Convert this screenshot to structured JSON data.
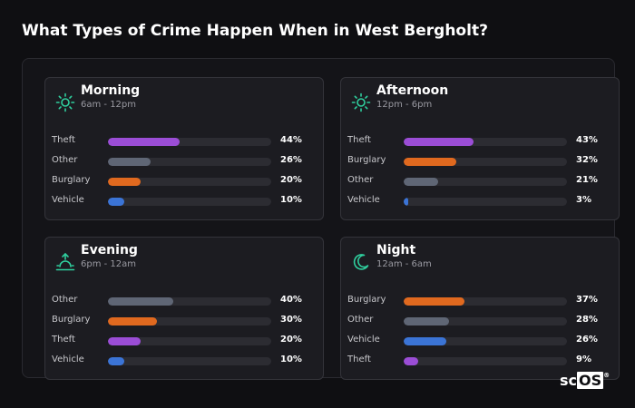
{
  "title": "What Types of Crime Happen When in West Bergholt?",
  "logo": {
    "prefix": "sc",
    "boxed": "OS",
    "mark": "®"
  },
  "colors": {
    "theft": "#9b4dd6",
    "other": "#5f6675",
    "burglary": "#e0691f",
    "vehicle": "#3b74d6",
    "icon": "#2fcf9e"
  },
  "chart_data": [
    {
      "type": "bar",
      "title": "Morning",
      "subtitle": "6am - 12pm",
      "icon": "sun-icon",
      "categories": [
        "Theft",
        "Other",
        "Burglary",
        "Vehicle"
      ],
      "values": [
        44,
        26,
        20,
        10
      ],
      "labels": [
        "44%",
        "26%",
        "20%",
        "10%"
      ],
      "xlim": [
        0,
        100
      ]
    },
    {
      "type": "bar",
      "title": "Afternoon",
      "subtitle": "12pm - 6pm",
      "icon": "sun-icon",
      "categories": [
        "Theft",
        "Burglary",
        "Other",
        "Vehicle"
      ],
      "values": [
        43,
        32,
        21,
        3
      ],
      "labels": [
        "43%",
        "32%",
        "21%",
        "3%"
      ],
      "xlim": [
        0,
        100
      ]
    },
    {
      "type": "bar",
      "title": "Evening",
      "subtitle": "6pm - 12am",
      "icon": "sunset-icon",
      "categories": [
        "Other",
        "Burglary",
        "Theft",
        "Vehicle"
      ],
      "values": [
        40,
        30,
        20,
        10
      ],
      "labels": [
        "40%",
        "30%",
        "20%",
        "10%"
      ],
      "xlim": [
        0,
        100
      ]
    },
    {
      "type": "bar",
      "title": "Night",
      "subtitle": "12am - 6am",
      "icon": "moon-icon",
      "categories": [
        "Burglary",
        "Other",
        "Vehicle",
        "Theft"
      ],
      "values": [
        37,
        28,
        26,
        9
      ],
      "labels": [
        "37%",
        "28%",
        "26%",
        "9%"
      ],
      "xlim": [
        0,
        100
      ]
    }
  ]
}
